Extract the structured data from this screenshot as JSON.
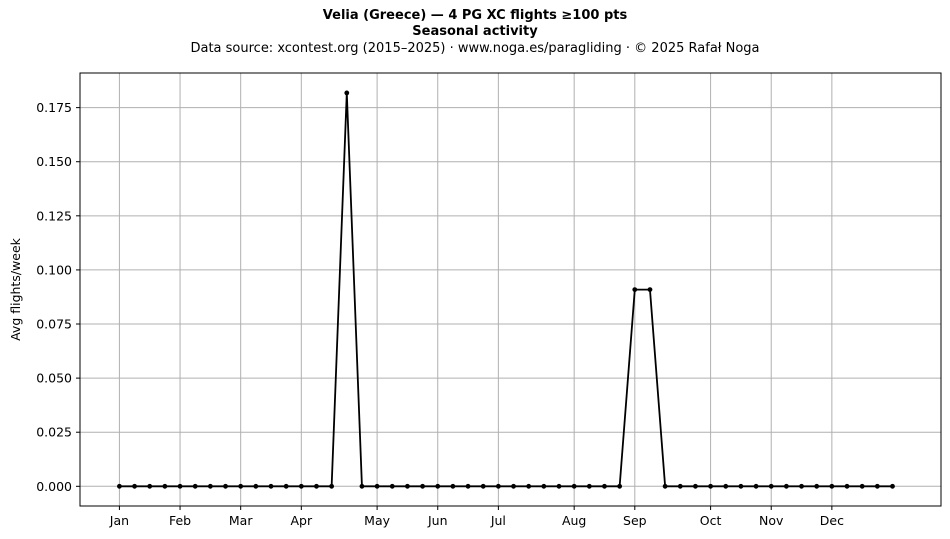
{
  "title_lines": {
    "line1": "Velia (Greece)  —  4 PG XC flights ≥100 pts",
    "line2": "Seasonal activity",
    "line3": "Data source: xcontest.org (2015–2025)  ·  www.noga.es/paragliding  ·  © 2025 Rafał Noga"
  },
  "chart_data": {
    "type": "line",
    "title": "Velia (Greece)  —  4 PG XC flights ≥100 pts",
    "subtitle": "Seasonal activity",
    "xlabel": "",
    "ylabel": "Avg flights/week",
    "x": [
      1,
      2,
      3,
      4,
      5,
      6,
      7,
      8,
      9,
      10,
      11,
      12,
      13,
      14,
      15,
      16,
      17,
      18,
      19,
      20,
      21,
      22,
      23,
      24,
      25,
      26,
      27,
      28,
      29,
      30,
      31,
      32,
      33,
      34,
      35,
      36,
      37,
      38,
      39,
      40,
      41,
      42,
      43,
      44,
      45,
      46,
      47,
      48,
      49,
      50,
      51,
      52
    ],
    "values": [
      0,
      0,
      0,
      0,
      0,
      0,
      0,
      0,
      0,
      0,
      0,
      0,
      0,
      0,
      0,
      0.1818,
      0,
      0,
      0,
      0,
      0,
      0,
      0,
      0,
      0,
      0,
      0,
      0,
      0,
      0,
      0,
      0,
      0,
      0,
      0.0909,
      0.0909,
      0,
      0,
      0,
      0,
      0,
      0,
      0,
      0,
      0,
      0,
      0,
      0,
      0,
      0,
      0,
      0
    ],
    "x_ticks": [
      {
        "week": 1,
        "label": "Jan"
      },
      {
        "week": 5,
        "label": "Feb"
      },
      {
        "week": 9,
        "label": "Mar"
      },
      {
        "week": 13,
        "label": "Apr"
      },
      {
        "week": 18,
        "label": "May"
      },
      {
        "week": 22,
        "label": "Jun"
      },
      {
        "week": 26,
        "label": "Jul"
      },
      {
        "week": 31,
        "label": "Aug"
      },
      {
        "week": 35,
        "label": "Sep"
      },
      {
        "week": 40,
        "label": "Oct"
      },
      {
        "week": 44,
        "label": "Nov"
      },
      {
        "week": 48,
        "label": "Dec"
      }
    ],
    "y_ticks": [
      "0.000",
      "0.025",
      "0.050",
      "0.075",
      "0.100",
      "0.125",
      "0.150",
      "0.175"
    ],
    "xlim": [
      -1.6,
      55.2
    ],
    "ylim": [
      -0.0091,
      0.191
    ],
    "grid": true,
    "line_color": "#000000",
    "grid_color": "#b0b0b0"
  }
}
